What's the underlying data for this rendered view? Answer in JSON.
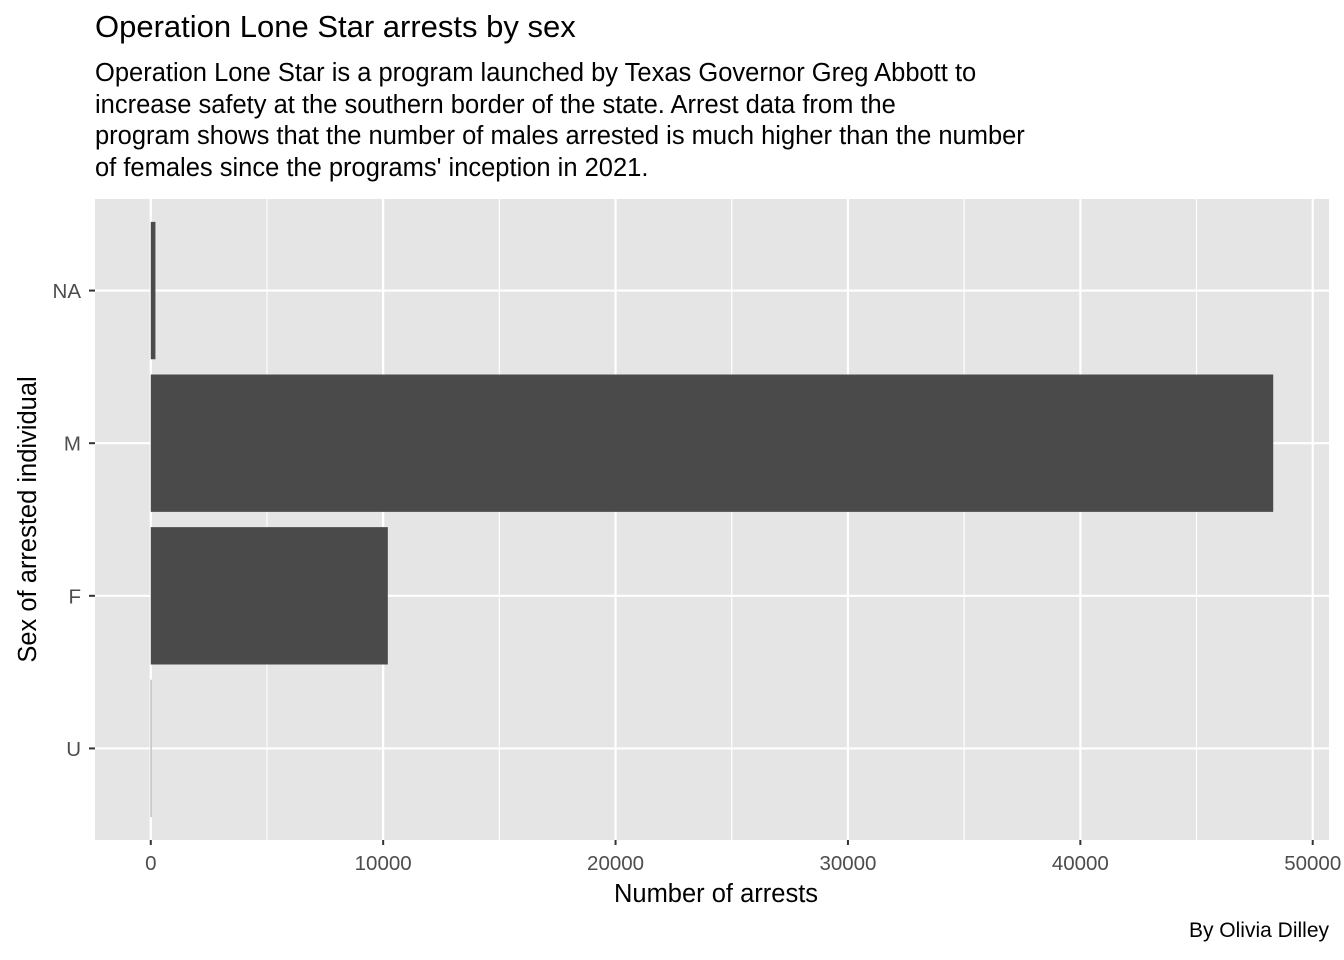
{
  "chart_data": {
    "type": "bar",
    "orientation": "horizontal",
    "title": "Operation Lone Star arrests by sex",
    "subtitle_lines": [
      "Operation Lone Star is a program launched by Texas Governor Greg Abbott to",
      "increase safety at the southern border of the state. Arrest data from the",
      "program shows that the number of males arrested is much higher than the number",
      "of females since the programs' inception in 2021."
    ],
    "caption": "By Olivia Dilley",
    "xlabel": "Number of arrests",
    "ylabel": "Sex of arrested individual",
    "categories": [
      "U",
      "F",
      "M",
      "NA"
    ],
    "values": [
      15,
      10200,
      48300,
      200
    ],
    "xlim": [
      -2400,
      50700
    ],
    "x_ticks": [
      0,
      10000,
      20000,
      30000,
      40000,
      50000
    ],
    "x_tick_labels": [
      "0",
      "10000",
      "20000",
      "30000",
      "40000",
      "50000"
    ],
    "grid": true,
    "colors": {
      "panel_background": "#e5e5e5",
      "grid_major": "#ffffff",
      "bar_fill": "#4a4a4a",
      "tick_color": "#333333"
    }
  }
}
